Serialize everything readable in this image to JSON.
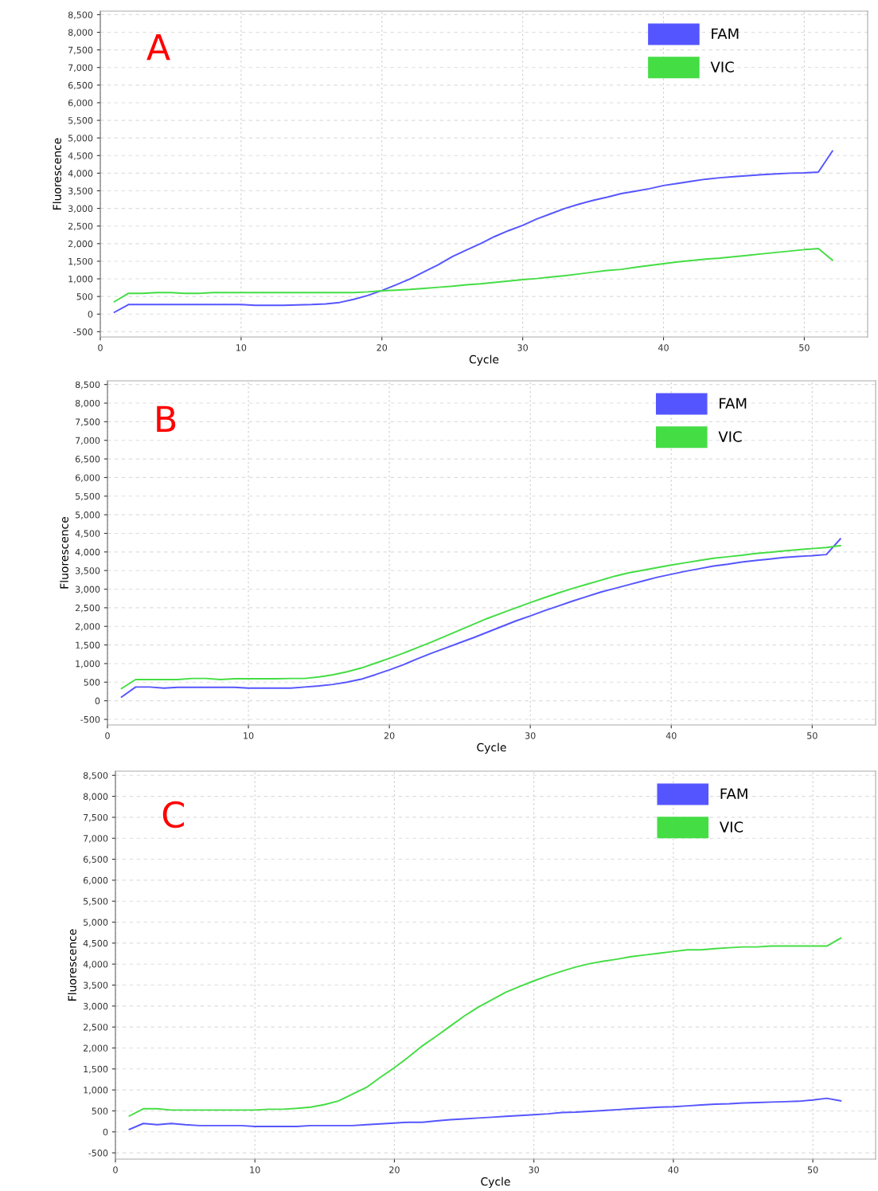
{
  "chart_data": [
    {
      "type": "line",
      "xlabel": "Cycle",
      "ylabel": "Fluorescence",
      "annotations": [
        "A"
      ],
      "x": [
        1,
        2,
        3,
        4,
        5,
        6,
        7,
        8,
        9,
        10,
        11,
        12,
        13,
        14,
        15,
        16,
        17,
        18,
        19,
        20,
        21,
        22,
        23,
        24,
        25,
        26,
        27,
        28,
        29,
        30,
        31,
        32,
        33,
        34,
        35,
        36,
        37,
        38,
        39,
        40,
        41,
        42,
        43,
        44,
        45,
        46,
        47,
        48,
        49,
        50,
        51,
        52
      ],
      "series": [
        {
          "name": "FAM",
          "color": "#5555ff",
          "values": [
            50,
            270,
            270,
            270,
            270,
            270,
            270,
            270,
            270,
            270,
            250,
            250,
            250,
            260,
            270,
            290,
            330,
            420,
            530,
            670,
            830,
            1000,
            1200,
            1400,
            1630,
            1820,
            2000,
            2200,
            2370,
            2520,
            2700,
            2850,
            3000,
            3120,
            3230,
            3320,
            3420,
            3490,
            3560,
            3650,
            3710,
            3770,
            3830,
            3870,
            3900,
            3930,
            3960,
            3980,
            4000,
            4010,
            4030,
            4630
          ]
        },
        {
          "name": "VIC",
          "color": "#44dd44",
          "values": [
            350,
            590,
            590,
            610,
            610,
            590,
            590,
            610,
            610,
            610,
            610,
            610,
            610,
            610,
            610,
            610,
            610,
            610,
            630,
            660,
            680,
            700,
            730,
            760,
            790,
            830,
            860,
            900,
            940,
            980,
            1010,
            1050,
            1090,
            1140,
            1190,
            1240,
            1270,
            1330,
            1380,
            1430,
            1480,
            1520,
            1560,
            1590,
            1630,
            1670,
            1710,
            1750,
            1790,
            1830,
            1860,
            1530
          ]
        }
      ],
      "xlim": [
        0,
        54.5
      ],
      "xticks": [
        0,
        10,
        20,
        30,
        40,
        50
      ],
      "ylim": [
        -650,
        8600
      ],
      "yticks": [
        {
          "value": -500,
          "label": "-500"
        },
        0,
        500,
        {
          "value": 1000,
          "label": "1,000"
        },
        {
          "value": 1500,
          "label": "1,500"
        },
        {
          "value": 2000,
          "label": "2,000"
        },
        {
          "value": 2500,
          "label": "2,500"
        },
        {
          "value": 3000,
          "label": "3,000"
        },
        {
          "value": 3500,
          "label": "3,500"
        },
        {
          "value": 4000,
          "label": "4,000"
        },
        {
          "value": 4500,
          "label": "4,500"
        },
        {
          "value": 5000,
          "label": "5,000"
        },
        {
          "value": 5500,
          "label": "5,500"
        },
        {
          "value": 6000,
          "label": "6,000"
        },
        {
          "value": 6500,
          "label": "6,500"
        },
        {
          "value": 7000,
          "label": "7,000"
        },
        {
          "value": 7500,
          "label": "7,500"
        },
        {
          "value": 8000,
          "label": "8,000"
        },
        {
          "value": 8500,
          "label": "8,500"
        }
      ],
      "grid": true,
      "legend": "top right",
      "line_style": "solid",
      "marker": "none"
    },
    {
      "type": "line",
      "xlabel": "Cycle",
      "ylabel": "Fluorescence",
      "annotations": [
        "B"
      ],
      "x": [
        1,
        2,
        3,
        4,
        5,
        6,
        7,
        8,
        9,
        10,
        11,
        12,
        13,
        14,
        15,
        16,
        17,
        18,
        19,
        20,
        21,
        22,
        23,
        24,
        25,
        26,
        27,
        28,
        29,
        30,
        31,
        32,
        33,
        34,
        35,
        36,
        37,
        38,
        39,
        40,
        41,
        42,
        43,
        44,
        45,
        46,
        47,
        48,
        49,
        50,
        51,
        52
      ],
      "series": [
        {
          "name": "FAM",
          "color": "#5555ff",
          "values": [
            100,
            370,
            370,
            340,
            360,
            360,
            360,
            360,
            360,
            340,
            340,
            340,
            340,
            370,
            400,
            440,
            500,
            580,
            700,
            830,
            970,
            1130,
            1280,
            1420,
            1560,
            1700,
            1850,
            2000,
            2150,
            2280,
            2420,
            2550,
            2680,
            2800,
            2920,
            3020,
            3120,
            3220,
            3320,
            3400,
            3480,
            3550,
            3620,
            3670,
            3730,
            3770,
            3810,
            3850,
            3880,
            3900,
            3930,
            4350
          ]
        },
        {
          "name": "VIC",
          "color": "#44dd44",
          "values": [
            330,
            570,
            570,
            570,
            570,
            600,
            600,
            570,
            590,
            590,
            590,
            590,
            600,
            600,
            640,
            700,
            780,
            880,
            1010,
            1140,
            1280,
            1430,
            1580,
            1740,
            1900,
            2060,
            2220,
            2360,
            2500,
            2640,
            2770,
            2900,
            3020,
            3130,
            3240,
            3350,
            3440,
            3510,
            3580,
            3650,
            3710,
            3770,
            3830,
            3870,
            3910,
            3960,
            3990,
            4030,
            4060,
            4090,
            4120,
            4170
          ]
        }
      ],
      "xlim": [
        0,
        54.5
      ],
      "xticks": [
        0,
        10,
        20,
        30,
        40,
        50
      ],
      "ylim": [
        -650,
        8600
      ],
      "yticks": [
        {
          "value": -500,
          "label": "-500"
        },
        0,
        500,
        {
          "value": 1000,
          "label": "1,000"
        },
        {
          "value": 1500,
          "label": "1,500"
        },
        {
          "value": 2000,
          "label": "2,000"
        },
        {
          "value": 2500,
          "label": "2,500"
        },
        {
          "value": 3000,
          "label": "3,000"
        },
        {
          "value": 3500,
          "label": "3,500"
        },
        {
          "value": 4000,
          "label": "4,000"
        },
        {
          "value": 4500,
          "label": "4,500"
        },
        {
          "value": 5000,
          "label": "5,000"
        },
        {
          "value": 5500,
          "label": "5,500"
        },
        {
          "value": 6000,
          "label": "6,000"
        },
        {
          "value": 6500,
          "label": "6,500"
        },
        {
          "value": 7000,
          "label": "7,000"
        },
        {
          "value": 7500,
          "label": "7,500"
        },
        {
          "value": 8000,
          "label": "8,000"
        },
        {
          "value": 8500,
          "label": "8,500"
        }
      ],
      "grid": true,
      "legend": "top right",
      "line_style": "solid",
      "marker": "none"
    },
    {
      "type": "line",
      "xlabel": "Cycle",
      "ylabel": "Fluorescence",
      "annotations": [
        "C"
      ],
      "x": [
        1,
        2,
        3,
        4,
        5,
        6,
        7,
        8,
        9,
        10,
        11,
        12,
        13,
        14,
        15,
        16,
        17,
        18,
        19,
        20,
        21,
        22,
        23,
        24,
        25,
        26,
        27,
        28,
        29,
        30,
        31,
        32,
        33,
        34,
        35,
        36,
        37,
        38,
        39,
        40,
        41,
        42,
        43,
        44,
        45,
        46,
        47,
        48,
        49,
        50,
        51,
        52
      ],
      "series": [
        {
          "name": "FAM",
          "color": "#5555ff",
          "values": [
            60,
            200,
            170,
            200,
            170,
            150,
            150,
            150,
            150,
            130,
            130,
            130,
            130,
            150,
            150,
            150,
            150,
            170,
            190,
            210,
            230,
            230,
            260,
            290,
            310,
            330,
            350,
            370,
            390,
            410,
            430,
            460,
            470,
            490,
            510,
            530,
            550,
            570,
            590,
            600,
            620,
            640,
            660,
            670,
            690,
            700,
            710,
            720,
            730,
            760,
            800,
            740
          ]
        },
        {
          "name": "VIC",
          "color": "#44dd44",
          "values": [
            380,
            550,
            550,
            520,
            520,
            520,
            520,
            520,
            520,
            520,
            540,
            540,
            560,
            590,
            650,
            740,
            900,
            1060,
            1300,
            1530,
            1780,
            2050,
            2280,
            2520,
            2760,
            2970,
            3150,
            3330,
            3470,
            3600,
            3720,
            3830,
            3930,
            4010,
            4070,
            4120,
            4180,
            4220,
            4260,
            4300,
            4340,
            4340,
            4370,
            4390,
            4410,
            4410,
            4430,
            4430,
            4430,
            4430,
            4430,
            4620
          ]
        }
      ],
      "xlim": [
        0,
        54.5
      ],
      "xticks": [
        0,
        10,
        20,
        30,
        40,
        50
      ],
      "ylim": [
        -650,
        8600
      ],
      "yticks": [
        {
          "value": -500,
          "label": "-500"
        },
        0,
        500,
        {
          "value": 1000,
          "label": "1,000"
        },
        {
          "value": 1500,
          "label": "1,500"
        },
        {
          "value": 2000,
          "label": "2,000"
        },
        {
          "value": 2500,
          "label": "2,500"
        },
        {
          "value": 3000,
          "label": "3,000"
        },
        {
          "value": 3500,
          "label": "3,500"
        },
        {
          "value": 4000,
          "label": "4,000"
        },
        {
          "value": 4500,
          "label": "4,500"
        },
        {
          "value": 5000,
          "label": "5,000"
        },
        {
          "value": 5500,
          "label": "5,500"
        },
        {
          "value": 6000,
          "label": "6,000"
        },
        {
          "value": 6500,
          "label": "6,500"
        },
        {
          "value": 7000,
          "label": "7,000"
        },
        {
          "value": 7500,
          "label": "7,500"
        },
        {
          "value": 8000,
          "label": "8,000"
        },
        {
          "value": 8500,
          "label": "8,500"
        }
      ],
      "grid": true,
      "legend": "top right",
      "line_style": "solid",
      "marker": "none"
    }
  ]
}
